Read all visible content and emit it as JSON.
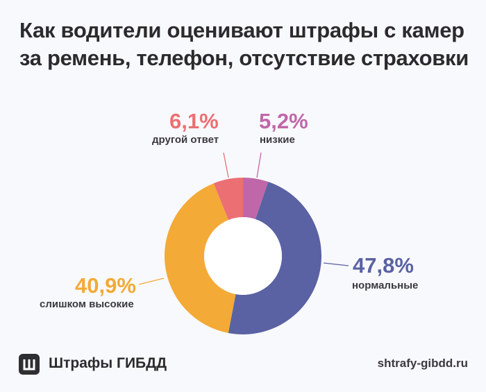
{
  "chart_data": {
    "type": "pie",
    "variant": "donut",
    "title": "Как водители оценивают штрафы с камер за ремень, телефон, отсутствие страховки",
    "slices": [
      {
        "label": "низкие",
        "value": 5.2,
        "value_label": "5,2%",
        "color": "#c067a9"
      },
      {
        "label": "нормальные",
        "value": 47.8,
        "value_label": "47,8%",
        "color": "#5a62a3"
      },
      {
        "label": "слишком высокие",
        "value": 40.9,
        "value_label": "40,9%",
        "color": "#f3aa36"
      },
      {
        "label": "другой ответ",
        "value": 6.1,
        "value_label": "6,1%",
        "color": "#ec6f73"
      }
    ],
    "start": "top",
    "direction": "clockwise"
  },
  "footer": {
    "brand": "Штрафы ГИБДД",
    "site": "shtrafy-gibdd.ru"
  }
}
